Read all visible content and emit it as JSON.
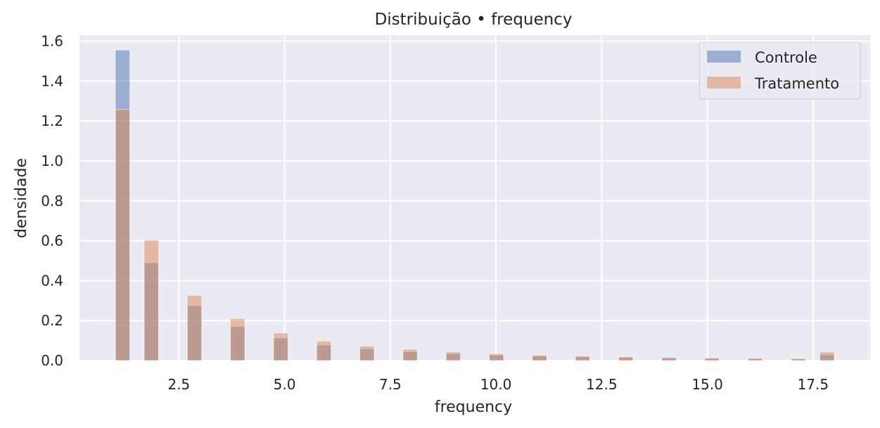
{
  "chart_data": {
    "type": "bar",
    "title": "Distribuição • frequency",
    "xlabel": "frequency",
    "ylabel": "densidade",
    "xlim": [
      0.15,
      18.85
    ],
    "ylim": [
      0,
      1.63
    ],
    "xticks": [
      2.5,
      5.0,
      7.5,
      10.0,
      12.5,
      15.0,
      17.5
    ],
    "xtick_labels": [
      "2.5",
      "5.0",
      "7.5",
      "10.0",
      "12.5",
      "15.0",
      "17.5"
    ],
    "yticks": [
      0.0,
      0.2,
      0.4,
      0.6,
      0.8,
      1.0,
      1.2,
      1.4,
      1.6
    ],
    "ytick_labels": [
      "0.0",
      "0.2",
      "0.4",
      "0.6",
      "0.8",
      "1.0",
      "1.2",
      "1.4",
      "1.6"
    ],
    "grid": true,
    "legend_position": "top-right",
    "bin_width": 0.34,
    "x": [
      1.17,
      1.85,
      2.87,
      3.89,
      4.91,
      5.93,
      6.95,
      7.97,
      8.99,
      10.01,
      11.03,
      12.05,
      13.07,
      14.09,
      15.11,
      16.13,
      17.15,
      17.83
    ],
    "series": [
      {
        "name": "Controle",
        "color": "#4c72b0",
        "values": [
          1.555,
          0.49,
          0.275,
          0.17,
          0.113,
          0.078,
          0.058,
          0.044,
          0.034,
          0.027,
          0.022,
          0.018,
          0.015,
          0.012,
          0.01,
          0.009,
          0.008,
          0.029
        ]
      },
      {
        "name": "Tratamento",
        "color": "#dd8452",
        "values": [
          1.258,
          0.603,
          0.326,
          0.21,
          0.138,
          0.097,
          0.072,
          0.056,
          0.043,
          0.034,
          0.027,
          0.023,
          0.019,
          0.016,
          0.013,
          0.012,
          0.01,
          0.042
        ]
      }
    ]
  }
}
